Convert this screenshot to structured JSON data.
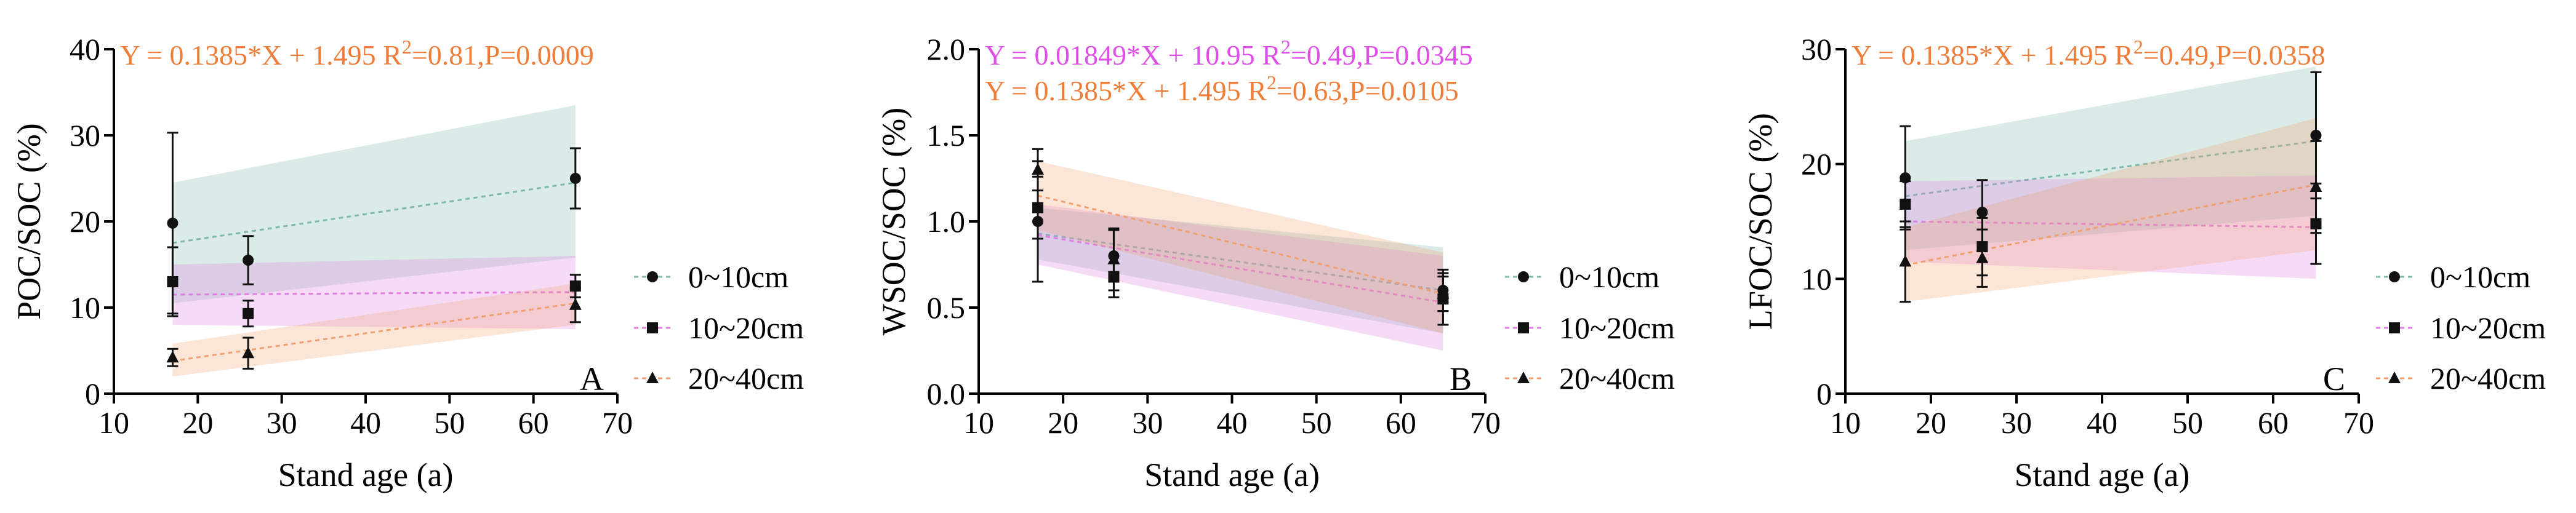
{
  "x_tick_labels": [
    "10",
    "20",
    "30",
    "40",
    "50",
    "60",
    "70"
  ],
  "series_colors": {
    "0~10cm": "#7fb8ad",
    "10~20cm": "#e07ee3",
    "20~40cm": "#f0a070"
  },
  "marker_color": "#111111",
  "chart_data": [
    {
      "panel": "A",
      "type": "scatter",
      "xlabel": "Stand age (a)",
      "ylabel": "POC/SOC (%)",
      "xlim": [
        10,
        70
      ],
      "ylim": [
        0,
        40
      ],
      "xticks": [
        10,
        20,
        30,
        40,
        50,
        60,
        70
      ],
      "yticks": [
        0,
        10,
        20,
        30,
        40
      ],
      "y_tick_labels": [
        "0",
        "10",
        "20",
        "30",
        "40"
      ],
      "equations": [
        {
          "text": "Y = 0.1385*X + 1.495 R",
          "sup": "2",
          "rest": "=0.81,P=0.0009",
          "color": "#ee7d3a"
        }
      ],
      "legend": [
        "0~10cm",
        "10~20cm",
        "20~40cm"
      ],
      "series": [
        {
          "name": "0~10cm",
          "marker": "circle",
          "x": [
            17,
            26,
            65
          ],
          "y": [
            19.8,
            15.5,
            25.0
          ],
          "err": [
            10.5,
            2.8,
            3.5
          ],
          "fit": [
            17.5,
            24.5
          ],
          "band": {
            "low": [
              10.5,
              15.8
            ],
            "high": [
              24.5,
              33.5
            ]
          }
        },
        {
          "name": "10~20cm",
          "marker": "square",
          "x": [
            17,
            26,
            65
          ],
          "y": [
            13.0,
            9.3,
            12.5
          ],
          "err": [
            4.0,
            1.5,
            1.3
          ],
          "fit": [
            11.5,
            11.8
          ],
          "band": {
            "low": [
              8.0,
              7.5
            ],
            "high": [
              15.0,
              16.0
            ]
          }
        },
        {
          "name": "20~40cm",
          "marker": "triangle",
          "x": [
            17,
            26,
            65
          ],
          "y": [
            4.2,
            4.7,
            10.3
          ],
          "err": [
            1.0,
            1.8,
            2.0
          ],
          "fit": [
            3.8,
            10.5
          ],
          "band": {
            "low": [
              2.0,
              8.0
            ],
            "high": [
              5.8,
              12.8
            ]
          }
        }
      ]
    },
    {
      "panel": "B",
      "type": "scatter",
      "xlabel": "Stand age (a)",
      "ylabel": "WSOC/SOC (%)",
      "xlim": [
        10,
        70
      ],
      "ylim": [
        0,
        2
      ],
      "xticks": [
        10,
        20,
        30,
        40,
        50,
        60,
        70
      ],
      "yticks": [
        0,
        0.5,
        1.0,
        1.5,
        2.0
      ],
      "y_tick_labels": [
        "0.0",
        "0.5",
        "1.0",
        "1.5",
        "2.0"
      ],
      "equations": [
        {
          "text": "Y = 0.01849*X + 10.95 R",
          "sup": "2",
          "rest": "=0.49,P=0.0345",
          "color": "#e04ee8"
        },
        {
          "text": "Y = 0.1385*X + 1.495 R",
          "sup": "2",
          "rest": "=0.63,P=0.0105",
          "color": "#ee7d3a"
        }
      ],
      "legend": [
        "0~10cm",
        "10~20cm",
        "20~40cm"
      ],
      "series": [
        {
          "name": "0~10cm",
          "marker": "circle",
          "x": [
            17,
            26,
            65
          ],
          "y": [
            1.0,
            0.8,
            0.6
          ],
          "err": [
            0.35,
            0.15,
            0.12
          ],
          "fit": [
            0.93,
            0.6
          ],
          "band": {
            "low": [
              0.78,
              0.35
            ],
            "high": [
              1.08,
              0.85
            ]
          }
        },
        {
          "name": "10~20cm",
          "marker": "square",
          "x": [
            17,
            26,
            65
          ],
          "y": [
            1.08,
            0.68,
            0.55
          ],
          "err": [
            0.18,
            0.12,
            0.15
          ],
          "fit": [
            0.92,
            0.53
          ],
          "band": {
            "low": [
              0.75,
              0.25
            ],
            "high": [
              1.1,
              0.8
            ]
          }
        },
        {
          "name": "20~40cm",
          "marker": "triangle",
          "x": [
            17,
            26,
            65
          ],
          "y": [
            1.3,
            0.78,
            0.58
          ],
          "err": [
            0.12,
            0.18,
            0.1
          ],
          "fit": [
            1.15,
            0.58
          ],
          "band": {
            "low": [
              0.95,
              0.35
            ],
            "high": [
              1.35,
              0.82
            ]
          }
        }
      ]
    },
    {
      "panel": "C",
      "type": "scatter",
      "xlabel": "Stand age (a)",
      "ylabel": "LFOC/SOC (%)",
      "xlim": [
        10,
        70
      ],
      "ylim": [
        0,
        30
      ],
      "xticks": [
        10,
        20,
        30,
        40,
        50,
        60,
        70
      ],
      "yticks": [
        0,
        10,
        20,
        30
      ],
      "y_tick_labels": [
        "0",
        "10",
        "20",
        "30"
      ],
      "equations": [
        {
          "text": "Y = 0.1385*X + 1.495 R",
          "sup": "2",
          "rest": "=0.49,P=0.0358",
          "color": "#ee7d3a"
        }
      ],
      "legend": [
        "0~10cm",
        "10~20cm",
        "20~40cm"
      ],
      "series": [
        {
          "name": "0~10cm",
          "marker": "circle",
          "x": [
            17,
            26,
            65
          ],
          "y": [
            18.8,
            15.8,
            22.5
          ],
          "err": [
            4.5,
            2.8,
            5.5
          ],
          "fit": [
            17.2,
            22.0
          ],
          "band": {
            "low": [
              12.5,
              15.5
            ],
            "high": [
              22.0,
              28.5
            ]
          }
        },
        {
          "name": "10~20cm",
          "marker": "square",
          "x": [
            17,
            26,
            65
          ],
          "y": [
            16.5,
            12.8,
            14.8
          ],
          "err": [
            2.0,
            2.5,
            3.5
          ],
          "fit": [
            15.0,
            14.5
          ],
          "band": {
            "low": [
              11.5,
              10.0
            ],
            "high": [
              18.5,
              19.0
            ]
          }
        },
        {
          "name": "20~40cm",
          "marker": "triangle",
          "x": [
            17,
            26,
            65
          ],
          "y": [
            11.5,
            11.8,
            18.0
          ],
          "err": [
            3.5,
            2.5,
            4.0
          ],
          "fit": [
            11.2,
            18.2
          ],
          "band": {
            "low": [
              8.0,
              12.5
            ],
            "high": [
              14.5,
              24.0
            ]
          }
        }
      ]
    }
  ]
}
